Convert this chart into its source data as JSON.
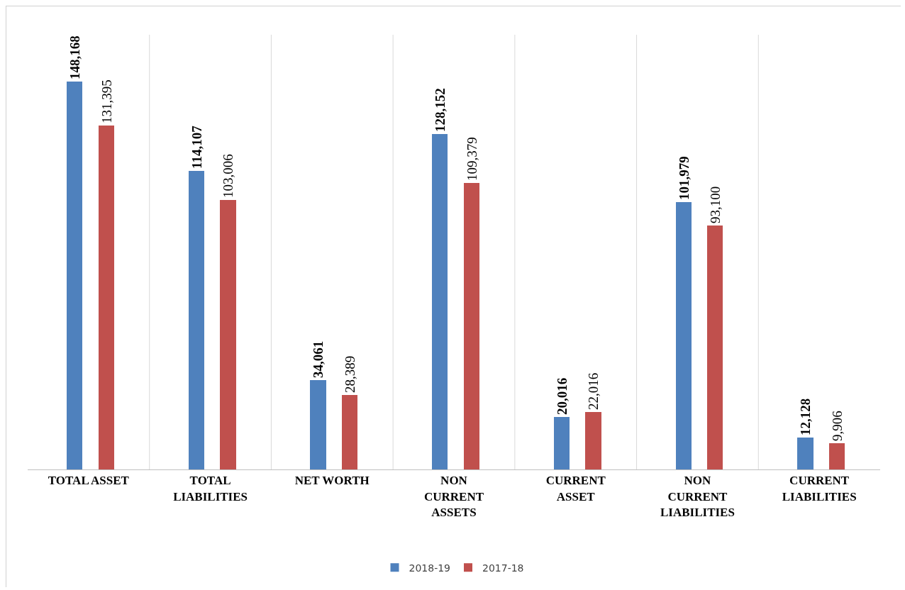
{
  "chart_data": {
    "type": "bar",
    "categories": [
      "TOTAL ASSET",
      "TOTAL\nLIABILITIES",
      "NET WORTH",
      "NON\nCURRENT\nASSETS",
      "CURRENT\nASSET",
      "NON\nCURRENT\nLIABILITIES",
      "CURRENT\nLIABILITIES"
    ],
    "series": [
      {
        "name": "2018-19",
        "color": "#4f81bd",
        "values": [
          148168,
          114107,
          34061,
          128152,
          20016,
          101979,
          12128
        ],
        "value_labels": [
          "148,168",
          "114,107",
          "34,061",
          "128,152",
          "20,016",
          "101,979",
          "12,128"
        ]
      },
      {
        "name": "2017-18",
        "color": "#c0504d",
        "values": [
          131395,
          103006,
          28389,
          109379,
          22016,
          93100,
          9906
        ],
        "value_labels": [
          "131,395",
          "103,006",
          "28,389",
          "109,379",
          "22,016",
          "93,100",
          "9,906"
        ]
      }
    ],
    "grid": "x",
    "legend": "bottom",
    "tick_labels": "x"
  }
}
